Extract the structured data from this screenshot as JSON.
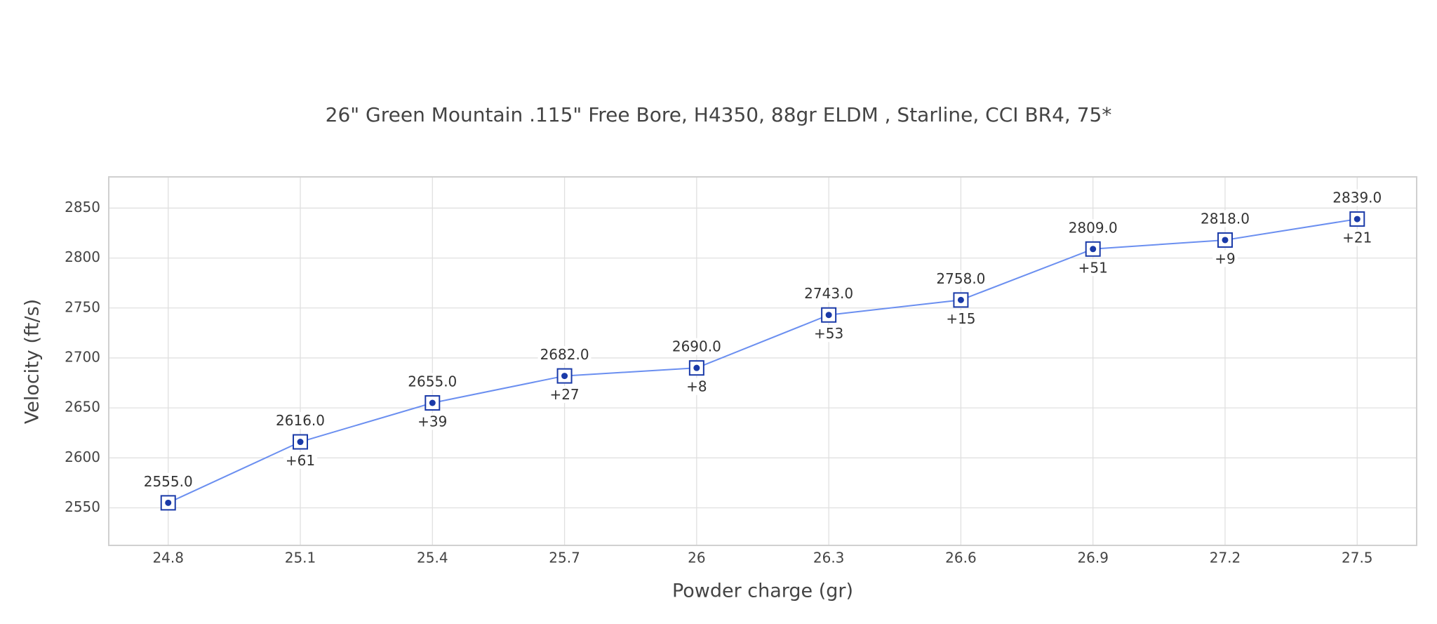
{
  "chart_data": {
    "type": "line",
    "title": "26\" Green Mountain .115\" Free Bore, H4350, 88gr ELDM , Starline, CCI BR4, 75*",
    "x_label": "Powder charge (gr)",
    "y_label": "Velocity (ft/s)",
    "x": [
      24.8,
      25.1,
      25.4,
      25.7,
      26,
      26.3,
      26.6,
      26.9,
      27.2,
      27.5
    ],
    "series": [
      {
        "name": "Velocity",
        "color": "#6b8ff0",
        "marker_color": "#1a3aa8",
        "values": [
          2555,
          2616,
          2655,
          2682,
          2690,
          2743,
          2758,
          2809,
          2818,
          2839
        ],
        "value_labels": [
          "2555.0",
          "2616.0",
          "2655.0",
          "2682.0",
          "2690.0",
          "2743.0",
          "2758.0",
          "2809.0",
          "2818.0",
          "2839.0"
        ],
        "delta_labels": [
          null,
          "+61",
          "+39",
          "+27",
          "+8",
          "+53",
          "+15",
          "+51",
          "+9",
          "+21"
        ]
      }
    ],
    "xlim": [
      24.665,
      27.635
    ],
    "xticks": [
      24.8,
      25.1,
      25.4,
      25.7,
      26,
      26.3,
      26.6,
      26.9,
      27.2,
      27.5
    ],
    "ylim": [
      2512.4,
      2881.2
    ],
    "yticks": [
      2550,
      2600,
      2650,
      2700,
      2750,
      2800,
      2850
    ],
    "grid": true
  }
}
